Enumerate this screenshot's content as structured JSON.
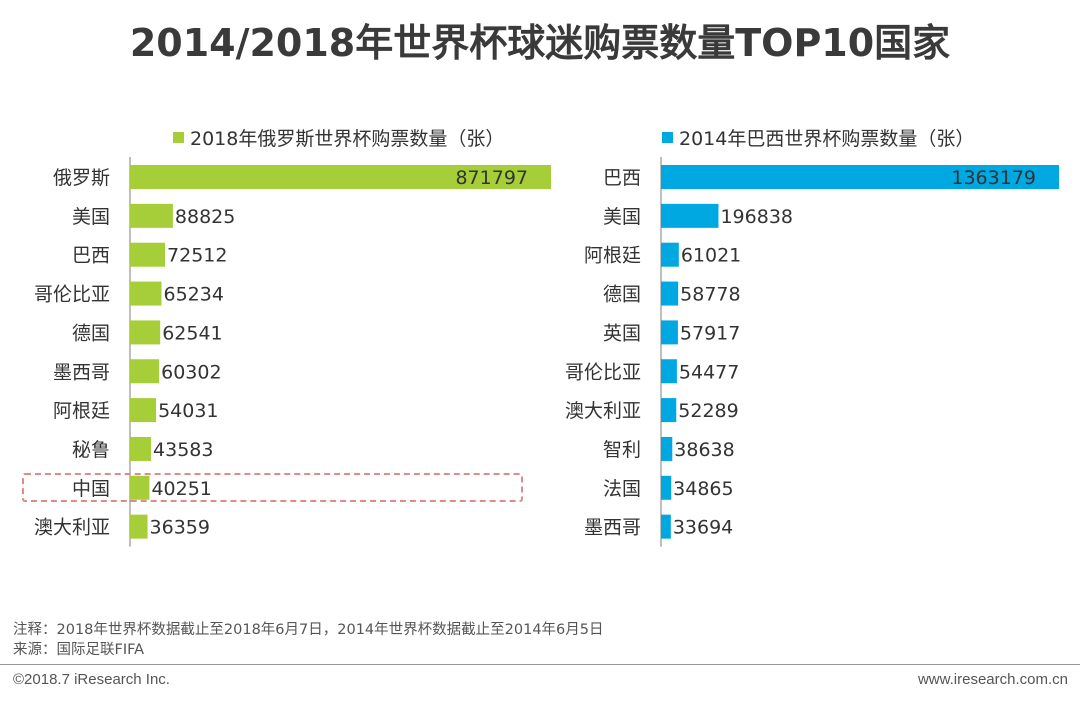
{
  "title": "2014/2018年世界杯球迷购票数量TOP10国家",
  "colors": {
    "left_series": "#a6ce39",
    "right_series": "#00a8e1",
    "highlight": "#e08a8a"
  },
  "chart_data": [
    {
      "type": "bar",
      "orientation": "horizontal",
      "legend": "2018年俄罗斯世界杯购票数量（张）",
      "categories": [
        "俄罗斯",
        "美国",
        "巴西",
        "哥伦比亚",
        "德国",
        "墨西哥",
        "阿根廷",
        "秘鲁",
        "中国",
        "澳大利亚"
      ],
      "values": [
        871797,
        88825,
        72512,
        65234,
        62541,
        60302,
        54031,
        43583,
        40251,
        36359
      ],
      "display_values": [
        "871797",
        "88825",
        "72512",
        "65234",
        "62541",
        "60302",
        "54031",
        "43583",
        "40251",
        "36359"
      ],
      "highlighted_category": "中国",
      "color": "#a6ce39"
    },
    {
      "type": "bar",
      "orientation": "horizontal",
      "legend": "2014年巴西世界杯购票数量（张）",
      "categories": [
        "巴西",
        "美国",
        "阿根廷",
        "德国",
        "英国",
        "哥伦比亚",
        "澳大利亚",
        "智利",
        "法国",
        "墨西哥"
      ],
      "values": [
        1363179,
        196838,
        61021,
        58778,
        57917,
        54477,
        52289,
        38638,
        34865,
        33694
      ],
      "display_values": [
        "1363179",
        "196838",
        "61021",
        "58778",
        "57917",
        "54477",
        "52289",
        "38638",
        "34865",
        "33694"
      ],
      "color": "#00a8e1"
    }
  ],
  "footnotes": {
    "note": "注释：2018年世界杯数据截止至2018年6月7日，2014年世界杯数据截止至2014年6月5日",
    "source": "来源：国际足联FIFA"
  },
  "footer": {
    "copyright": "©2018.7 iResearch Inc.",
    "website": "www.iresearch.com.cn"
  }
}
